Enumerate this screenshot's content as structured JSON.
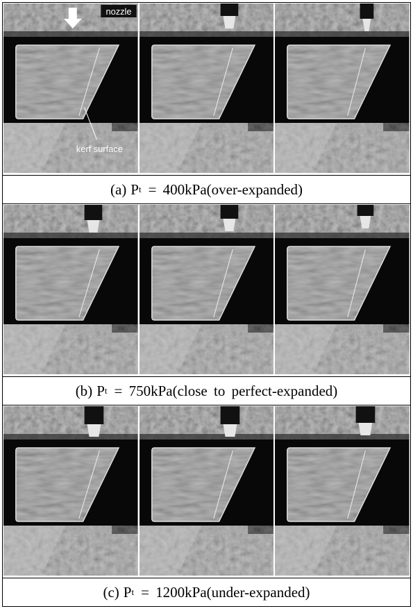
{
  "annotations": {
    "nozzle": "nozzle",
    "kerf": "kerf surface"
  },
  "panels": [
    {
      "label": "(a)",
      "variable": "P",
      "subscript": "t",
      "text": "= 400kPa(over-expanded)"
    },
    {
      "label": "(b)",
      "variable": "P",
      "subscript": "t",
      "text": "= 750kPa(close to perfect-expanded)"
    },
    {
      "label": "(c)",
      "variable": "P",
      "subscript": "t",
      "text": "= 1200kPa(under-expanded)"
    }
  ]
}
